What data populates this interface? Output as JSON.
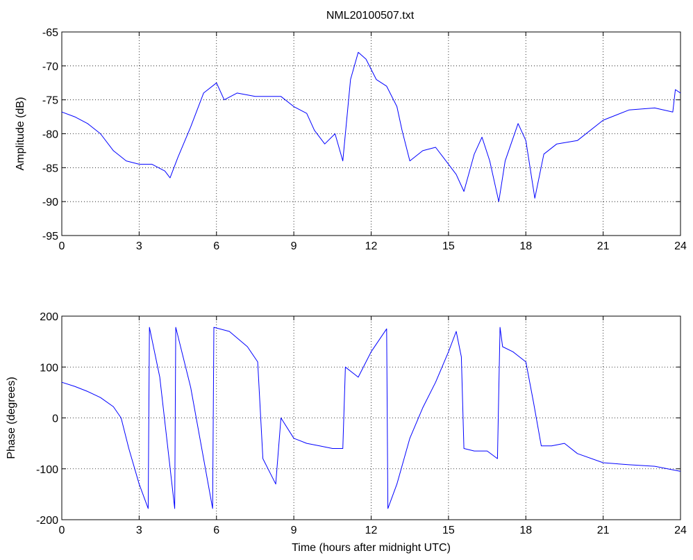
{
  "figure": {
    "title": "NML20100507.txt"
  },
  "chart_data": [
    {
      "type": "line",
      "title": "NML20100507.txt",
      "xlabel": "",
      "ylabel": "Amplitude (dB)",
      "xlim": [
        0,
        24
      ],
      "ylim": [
        -95,
        -65
      ],
      "xticks": [
        0,
        3,
        6,
        9,
        12,
        15,
        18,
        21,
        24
      ],
      "yticks": [
        -95,
        -90,
        -85,
        -80,
        -75,
        -70,
        -65
      ],
      "grid": true,
      "color": "#0000ff",
      "series": [
        {
          "x": [
            0,
            0.5,
            1,
            1.5,
            2,
            2.5,
            3,
            3.5,
            4,
            4.2,
            4.5,
            5,
            5.5,
            6,
            6.3,
            6.8,
            7.5,
            8.5,
            9,
            9.5,
            9.8,
            10.2,
            10.6,
            10.9,
            11.2,
            11.5,
            11.8,
            12.2,
            12.6,
            13.0,
            13.2,
            13.5,
            14.0,
            14.5,
            15.0,
            15.3,
            15.6,
            16.0,
            16.3,
            16.6,
            16.95,
            17.2,
            17.7,
            18.0,
            18.35,
            18.7,
            19.2,
            20.0,
            21.0,
            22.0,
            23.0,
            23.7,
            23.8,
            24.0
          ],
          "y": [
            -76.8,
            -77.5,
            -78.5,
            -80,
            -82.5,
            -84,
            -84.5,
            -84.5,
            -85.5,
            -86.5,
            -83.5,
            -79,
            -74,
            -72.5,
            -75,
            -74,
            -74.5,
            -74.5,
            -76,
            -77,
            -79.5,
            -81.5,
            -80,
            -84,
            -72,
            -68,
            -69,
            -72,
            -73,
            -76,
            -79.5,
            -84,
            -82.5,
            -82,
            -84.5,
            -86,
            -88.5,
            -83,
            -80.5,
            -84,
            -90,
            -84,
            -78.5,
            -81,
            -89.5,
            -83,
            -81.5,
            -81,
            -78,
            -76.5,
            -76.2,
            -76.8,
            -73.5,
            -74
          ]
        }
      ]
    },
    {
      "type": "line",
      "title": "",
      "xlabel": "Time (hours after midnight UTC)",
      "ylabel": "Phase (degrees)",
      "xlim": [
        0,
        24
      ],
      "ylim": [
        -200,
        200
      ],
      "xticks": [
        0,
        3,
        6,
        9,
        12,
        15,
        18,
        21,
        24
      ],
      "yticks": [
        -200,
        -100,
        0,
        100,
        200
      ],
      "grid": true,
      "color": "#0000ff",
      "series": [
        {
          "x": [
            0,
            0.5,
            1,
            1.5,
            2,
            2.3,
            2.6,
            3.0,
            3.35,
            3.4,
            3.8,
            4.38,
            4.42,
            5.0,
            5.85,
            5.9,
            6.5,
            7.2,
            7.6,
            7.8,
            8.0,
            8.3,
            8.5,
            9.0,
            9.5,
            10.0,
            10.5,
            10.9,
            11.0,
            11.5,
            12.0,
            12.6,
            12.65,
            13.0,
            13.5,
            14.0,
            14.5,
            15.0,
            15.3,
            15.5,
            15.6,
            16.0,
            16.5,
            16.9,
            17.0,
            17.1,
            17.5,
            18.0,
            18.3,
            18.6,
            19.0,
            19.5,
            20.0,
            21.0,
            22.0,
            23.0,
            24.0
          ],
          "y": [
            70,
            62,
            52,
            40,
            22,
            0,
            -60,
            -130,
            -178,
            178,
            80,
            -178,
            178,
            60,
            -178,
            178,
            170,
            140,
            110,
            -80,
            -100,
            -130,
            0,
            -40,
            -50,
            -55,
            -60,
            -60,
            100,
            80,
            130,
            175,
            -178,
            -130,
            -40,
            20,
            70,
            130,
            170,
            120,
            -60,
            -65,
            -65,
            -80,
            178,
            140,
            130,
            110,
            30,
            -55,
            -55,
            -50,
            -70,
            -88,
            -92,
            -95,
            -105
          ]
        }
      ]
    }
  ]
}
